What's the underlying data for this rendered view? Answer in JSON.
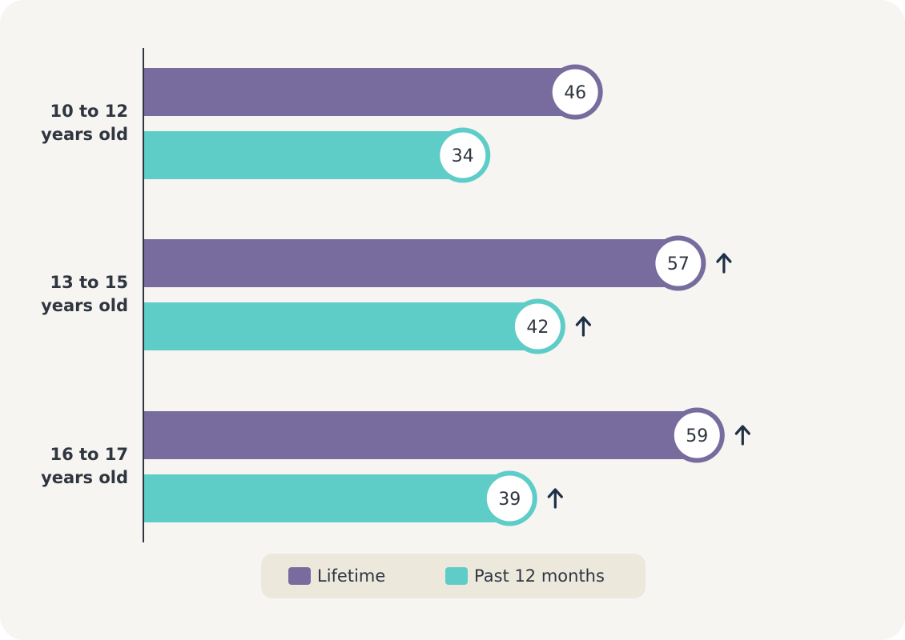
{
  "chart_data": {
    "type": "bar",
    "orientation": "horizontal",
    "categories": [
      [
        "10 to 12",
        "years old"
      ],
      [
        "13 to 15",
        "years old"
      ],
      [
        "16 to 17",
        "years old"
      ]
    ],
    "series": [
      {
        "name": "Lifetime",
        "color": "#786c9e",
        "values": [
          46,
          57,
          59
        ],
        "increase_marker": [
          false,
          true,
          true
        ]
      },
      {
        "name": "Past 12 months",
        "color": "#5ecdc8",
        "values": [
          34,
          42,
          39
        ],
        "increase_marker": [
          false,
          true,
          true
        ]
      }
    ],
    "xlim": [
      0,
      100
    ],
    "grid": false,
    "legend_position": "bottom",
    "marker_icon": "up-arrow-icon",
    "marker_color": "#1e3048"
  },
  "legend": {
    "items": [
      {
        "label": "Lifetime",
        "color": "#786c9e"
      },
      {
        "label": "Past 12 months",
        "color": "#5ecdc8"
      }
    ]
  }
}
